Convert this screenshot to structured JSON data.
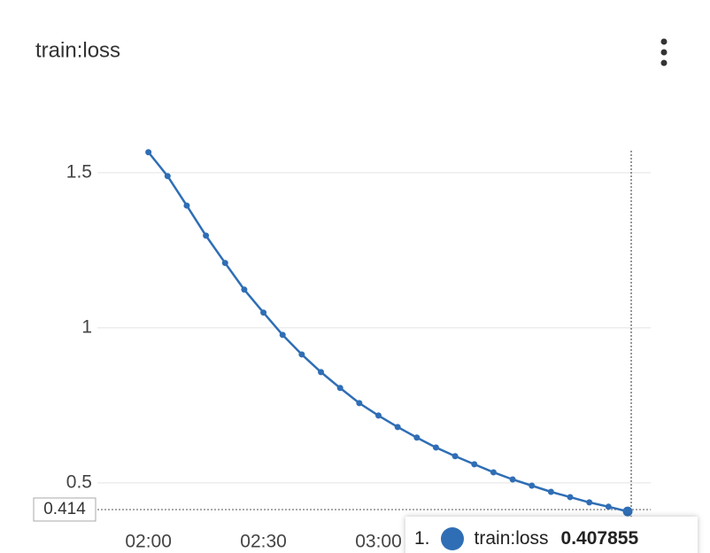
{
  "chart_data": {
    "type": "line",
    "title": "train:loss",
    "x": [
      "02:00",
      "02:05",
      "02:10",
      "02:15",
      "02:20",
      "02:25",
      "02:30",
      "02:35",
      "02:40",
      "02:45",
      "02:50",
      "02:55",
      "03:00",
      "03:05",
      "03:10",
      "03:15",
      "03:20",
      "03:25",
      "03:30",
      "03:35",
      "03:40",
      "03:45",
      "03:50",
      "03:55",
      "04:00",
      "04:05"
    ],
    "series": [
      {
        "name": "train:loss",
        "color": "#2f6eb5",
        "values": [
          1.566,
          1.489,
          1.394,
          1.297,
          1.209,
          1.123,
          1.049,
          0.977,
          0.914,
          0.857,
          0.806,
          0.757,
          0.717,
          0.68,
          0.646,
          0.614,
          0.586,
          0.56,
          0.534,
          0.511,
          0.491,
          0.471,
          0.454,
          0.437,
          0.423,
          0.407855
        ]
      }
    ],
    "xlim": [
      "01:49",
      "04:11"
    ],
    "xticks": [
      "02:00",
      "02:30",
      "03:00"
    ],
    "ylim": [
      0.371,
      1.571
    ],
    "yticks": [
      0.5,
      1,
      1.5
    ],
    "grid": true,
    "reference_line": 0.414,
    "tooltip": {
      "rank": "1."
    }
  }
}
